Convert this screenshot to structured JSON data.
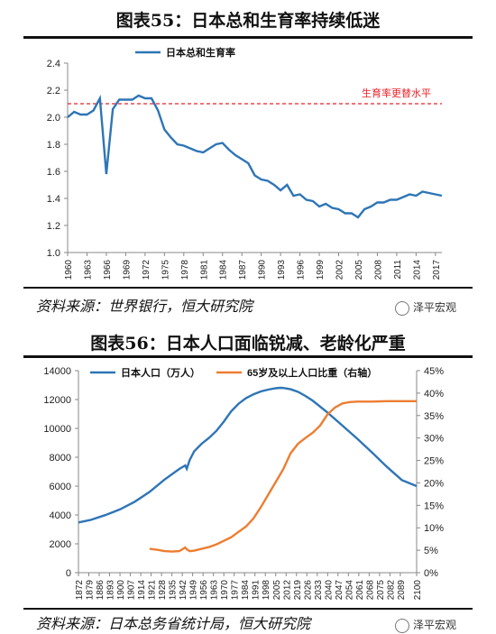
{
  "watermark": "泽平宏观",
  "charts": [
    {
      "title": "图表55：日本总和生育率持续低迷",
      "source": "资料来源：世界银行，恒大研究院",
      "chart_data": {
        "type": "line",
        "ylim": [
          1.0,
          2.4
        ],
        "yticks": [
          "1.0",
          "1.2",
          "1.4",
          "1.6",
          "1.8",
          "2.0",
          "2.2",
          "2.4"
        ],
        "xlim": [
          1960,
          2018
        ],
        "xticks": [
          "1960",
          "1963",
          "1966",
          "1969",
          "1972",
          "1975",
          "1978",
          "1981",
          "1984",
          "1987",
          "1990",
          "1993",
          "1996",
          "1999",
          "2002",
          "2005",
          "2008",
          "2011",
          "2014",
          "2017"
        ],
        "legend": "top-left",
        "series": [
          {
            "name": "日本总和生育率",
            "color": "#2e75b6",
            "x": [
              1960,
              1961,
              1962,
              1963,
              1964,
              1965,
              1966,
              1967,
              1968,
              1969,
              1970,
              1971,
              1972,
              1973,
              1974,
              1975,
              1976,
              1977,
              1978,
              1979,
              1980,
              1981,
              1982,
              1983,
              1984,
              1985,
              1986,
              1987,
              1988,
              1989,
              1990,
              1991,
              1992,
              1993,
              1994,
              1995,
              1996,
              1997,
              1998,
              1999,
              2000,
              2001,
              2002,
              2003,
              2004,
              2005,
              2006,
              2007,
              2008,
              2009,
              2010,
              2011,
              2012,
              2013,
              2014,
              2015,
              2016,
              2017,
              2018
            ],
            "y": [
              2.0,
              2.04,
              2.02,
              2.02,
              2.05,
              2.14,
              1.58,
              2.06,
              2.13,
              2.13,
              2.13,
              2.16,
              2.14,
              2.14,
              2.05,
              1.91,
              1.85,
              1.8,
              1.79,
              1.77,
              1.75,
              1.74,
              1.77,
              1.8,
              1.81,
              1.76,
              1.72,
              1.69,
              1.66,
              1.57,
              1.54,
              1.53,
              1.5,
              1.46,
              1.5,
              1.42,
              1.43,
              1.39,
              1.38,
              1.34,
              1.36,
              1.33,
              1.32,
              1.29,
              1.29,
              1.26,
              1.32,
              1.34,
              1.37,
              1.37,
              1.39,
              1.39,
              1.41,
              1.43,
              1.42,
              1.45,
              1.44,
              1.43,
              1.42
            ]
          }
        ],
        "reference_line": {
          "label": "生育率更替水平",
          "value": 2.1,
          "color": "#e8232a"
        }
      }
    },
    {
      "title": "图表56：日本人口面临锐减、老龄化严重",
      "source": "资料来源：日本总务省统计局，恒大研究院",
      "chart_data": {
        "type": "line",
        "xlim": [
          1872,
          2100
        ],
        "xticks": [
          "1872",
          "1879",
          "1886",
          "1893",
          "1900",
          "1907",
          "1914",
          "1921",
          "1928",
          "1935",
          "1942",
          "1949",
          "1956",
          "1963",
          "1970",
          "1977",
          "1984",
          "1991",
          "1998",
          "2005",
          "2012",
          "2019",
          "2026",
          "2033",
          "2040",
          "2047",
          "2054",
          "2061",
          "2068",
          "2075",
          "2082",
          "2089",
          "2100"
        ],
        "ylim": [
          0,
          14000
        ],
        "yticks": [
          "0",
          "2000",
          "4000",
          "6000",
          "8000",
          "10000",
          "12000",
          "14000"
        ],
        "y2lim": [
          0,
          45
        ],
        "y2ticks": [
          "0%",
          "5%",
          "10%",
          "15%",
          "20%",
          "25%",
          "30%",
          "35%",
          "40%",
          "45%"
        ],
        "legend": "top",
        "series": [
          {
            "name": "日本人口（万人）",
            "axis": "left",
            "color": "#2e75b6",
            "x": [
              1872,
              1880,
              1890,
              1900,
              1910,
              1920,
              1930,
              1940,
              1944,
              1945,
              1947,
              1950,
              1955,
              1960,
              1965,
              1970,
              1975,
              1980,
              1985,
              1990,
              1995,
              2000,
              2005,
              2008,
              2010,
              2015,
              2020,
              2025,
              2030,
              2040,
              2050,
              2060,
              2070,
              2080,
              2090,
              2100
            ],
            "y": [
              3480,
              3650,
              3990,
              4390,
              4920,
              5600,
              6450,
              7190,
              7430,
              7200,
              7810,
              8410,
              8930,
              9340,
              9830,
              10470,
              11190,
              11710,
              12100,
              12360,
              12560,
              12690,
              12780,
              12810,
              12800,
              12710,
              12530,
              12250,
              11910,
              11090,
              10190,
              9280,
              8320,
              7330,
              6420,
              6000
            ]
          },
          {
            "name": "65岁及以上人口比重（右轴）",
            "axis": "right",
            "color": "#ed7d31",
            "x": [
              1920,
              1925,
              1930,
              1935,
              1940,
              1944,
              1945,
              1947,
              1950,
              1955,
              1960,
              1965,
              1970,
              1975,
              1980,
              1985,
              1990,
              1995,
              2000,
              2005,
              2010,
              2015,
              2020,
              2025,
              2030,
              2035,
              2040,
              2045,
              2050,
              2055,
              2060,
              2070,
              2080,
              2090,
              2100
            ],
            "y": [
              5.3,
              5.1,
              4.8,
              4.7,
              4.8,
              5.6,
              5.2,
              4.8,
              4.9,
              5.3,
              5.7,
              6.3,
              7.1,
              7.9,
              9.1,
              10.3,
              12.1,
              14.6,
              17.4,
              20.2,
              23.0,
              26.6,
              28.7,
              30.0,
              31.2,
              32.8,
              35.3,
              36.8,
              37.7,
              38.0,
              38.1,
              38.1,
              38.2,
              38.2,
              38.2
            ]
          }
        ]
      }
    }
  ]
}
